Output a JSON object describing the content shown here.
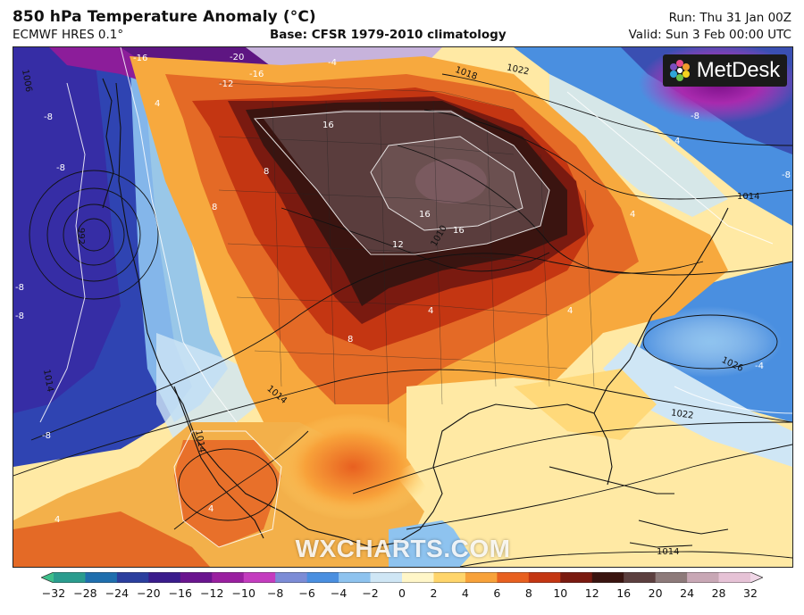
{
  "header": {
    "title": "850 hPa Temperature Anomaly (°C)",
    "model": "ECMWF HRES 0.1°",
    "base": "Base: CFSR 1979-2010 climatology",
    "run": "Run: Thu 31 Jan 00Z",
    "valid": "Valid: Sun 3 Feb 00:00 UTC"
  },
  "map": {
    "brand_logo": "MetDesk",
    "watermark": "WXCHARTS.COM",
    "contour_labels": [
      "-16",
      "-20",
      "-16",
      "-12",
      "-4",
      "-8",
      "-8",
      "-8",
      "-8",
      "-8",
      "-4",
      "-8",
      "-8",
      "16",
      "16",
      "16",
      "12",
      "8",
      "8",
      "8",
      "4",
      "4",
      "4",
      "4",
      "4",
      "4",
      "4"
    ],
    "isobar_labels": [
      "1006",
      "1018",
      "1022",
      "1014",
      "1010",
      "1014",
      "1014",
      "1026",
      "1022",
      "1014",
      "1014",
      "992"
    ]
  },
  "legend": {
    "tick_labels": [
      "−32",
      "−28",
      "−24",
      "−20",
      "−16",
      "−12",
      "−10",
      "−8",
      "−6",
      "−4",
      "−2",
      "0",
      "2",
      "4",
      "6",
      "8",
      "10",
      "12",
      "16",
      "20",
      "24",
      "28",
      "32"
    ],
    "colors": [
      "#3dbf8a",
      "#2a9c8e",
      "#1f6fae",
      "#2b3f9e",
      "#3a1c8c",
      "#6a148f",
      "#9a1fa0",
      "#c43cbf",
      "#7c8cd6",
      "#4a8fe0",
      "#8ec3ef",
      "#cfe6f5",
      "#fff6c8",
      "#ffd56b",
      "#f8a23a",
      "#e86020",
      "#c43612",
      "#7a1a10",
      "#3a1410",
      "#5c3f3f",
      "#8d7a7a",
      "#c8a7b5",
      "#e6c2d6",
      "#f0d7e7"
    ]
  }
}
